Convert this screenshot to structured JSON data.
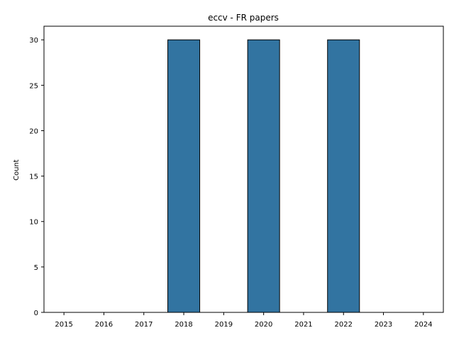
{
  "chart_data": {
    "type": "bar",
    "title": "eccv - FR papers",
    "xlabel": "",
    "ylabel": "Count",
    "categories": [
      "2015",
      "2016",
      "2017",
      "2018",
      "2019",
      "2020",
      "2021",
      "2022",
      "2023",
      "2024"
    ],
    "values": [
      0,
      0,
      0,
      30,
      0,
      30,
      0,
      30,
      0,
      0
    ],
    "ylim": [
      0,
      31.5
    ],
    "yticks": [
      0,
      5,
      10,
      15,
      20,
      25,
      30
    ],
    "grid": false,
    "bar_color": "#3274a1",
    "edge_color": "#000000"
  }
}
